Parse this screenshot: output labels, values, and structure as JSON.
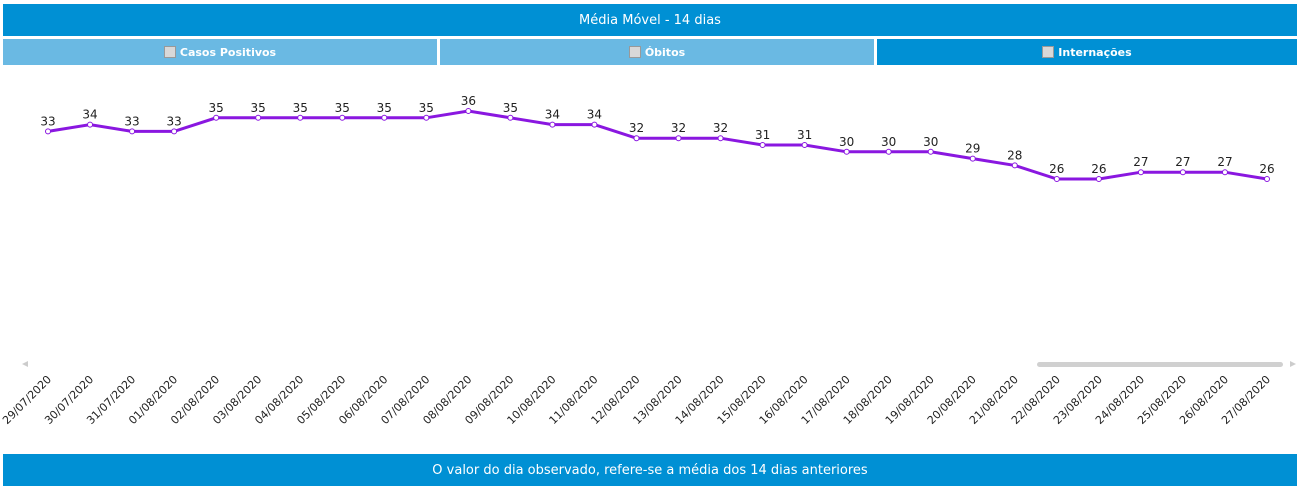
{
  "header": {
    "title": "Média Móvel - 14 dias"
  },
  "tabs": [
    "Casos Positivos",
    "Óbitos",
    "Internações"
  ],
  "footer": {
    "text": "O valor do dia observado, refere-se a média dos 14 dias anteriores"
  },
  "chart_data": {
    "type": "line",
    "categories": [
      "29/07/2020",
      "30/07/2020",
      "31/07/2020",
      "01/08/2020",
      "02/08/2020",
      "03/08/2020",
      "04/08/2020",
      "05/08/2020",
      "06/08/2020",
      "07/08/2020",
      "08/08/2020",
      "09/08/2020",
      "10/08/2020",
      "11/08/2020",
      "12/08/2020",
      "13/08/2020",
      "14/08/2020",
      "15/08/2020",
      "16/08/2020",
      "17/08/2020",
      "18/08/2020",
      "19/08/2020",
      "20/08/2020",
      "21/08/2020",
      "22/08/2020",
      "23/08/2020",
      "24/08/2020",
      "25/08/2020",
      "26/08/2020",
      "27/08/2020"
    ],
    "series": [
      {
        "color": "#8a17e0",
        "values": [
          33,
          34,
          33,
          33,
          35,
          35,
          35,
          35,
          35,
          35,
          36,
          35,
          34,
          34,
          32,
          32,
          32,
          31,
          31,
          30,
          30,
          30,
          29,
          28,
          26,
          26,
          27,
          27,
          27,
          26
        ]
      }
    ]
  }
}
